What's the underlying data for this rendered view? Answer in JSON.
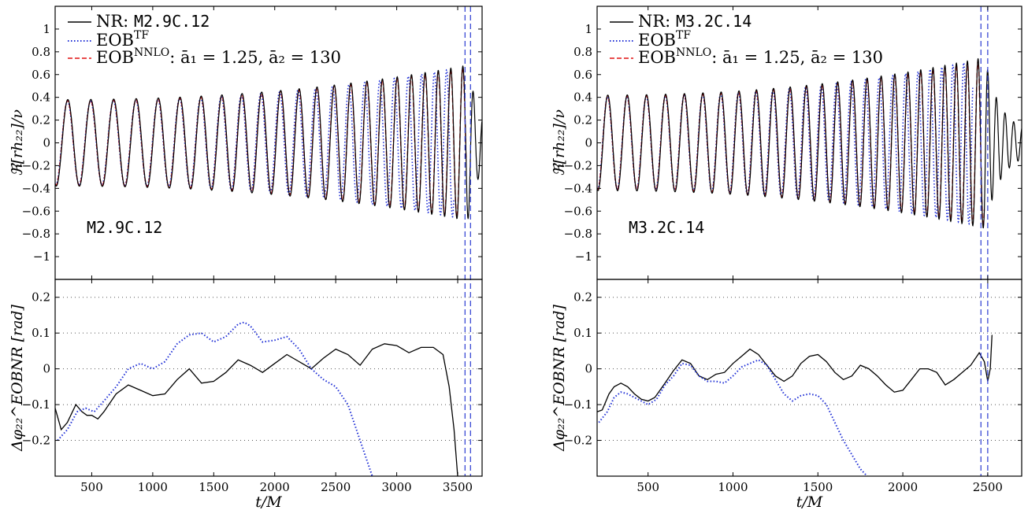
{
  "chart_data": [
    {
      "type": "line",
      "panel": "left",
      "annotation": "M2.9C.12",
      "legend": {
        "nr_prefix": "NR: ",
        "nr_id": "M2.9C.12",
        "eob_tf_base": "EOB",
        "eob_tf_sup": "TF",
        "eob_nnlo_base": "EOB",
        "eob_nnlo_sup": "NNLO",
        "eob_nnlo_rest": ": ā₁ = 1.25, ā₂ = 130",
        "placement": "top-left"
      },
      "xlabel": "t/M",
      "top": {
        "ylabel": "ℜ[rh₂₂]/ν",
        "xlim": [
          200,
          3700
        ],
        "ylim": [
          -1.2,
          1.2
        ],
        "yticks": [
          "1",
          "0.8",
          "0.6",
          "0.4",
          "0.2",
          "0",
          "−0.2",
          "−0.4",
          "−0.6",
          "−0.8",
          "−1"
        ],
        "ytick_values": [
          1,
          0.8,
          0.6,
          0.4,
          0.2,
          0,
          -0.2,
          -0.4,
          -0.6,
          -0.8,
          -1
        ],
        "vlines": [
          3560,
          3605
        ],
        "wave": {
          "t0": 200,
          "t_merger": 3570,
          "period_start": 190,
          "period_end": 95,
          "amp_start": 0.38,
          "amp_end": 0.68,
          "ringdown_end": 3700
        }
      },
      "bottom": {
        "ylabel": "Δφ₂₂^EOBNR [rad]",
        "xlim": [
          200,
          3700
        ],
        "ylim": [
          -0.3,
          0.25
        ],
        "yticks": [
          "0.2",
          "0.1",
          "0",
          "−0.1",
          "−0.2"
        ],
        "ytick_values": [
          0.2,
          0.1,
          0,
          -0.1,
          -0.2
        ],
        "grid": "dotted",
        "vlines": [
          3560,
          3605
        ],
        "series": [
          {
            "name": "NR",
            "style": "solid",
            "x": [
              200,
              250,
              300,
              370,
              420,
              460,
              500,
              550,
              600,
              700,
              800,
              900,
              1000,
              1100,
              1200,
              1300,
              1400,
              1500,
              1600,
              1700,
              1800,
              1900,
              2000,
              2100,
              2200,
              2300,
              2400,
              2500,
              2600,
              2700,
              2800,
              2900,
              3000,
              3100,
              3200,
              3300,
              3380,
              3430,
              3470,
              3500
            ],
            "y": [
              -0.11,
              -0.17,
              -0.15,
              -0.1,
              -0.12,
              -0.13,
              -0.13,
              -0.14,
              -0.12,
              -0.07,
              -0.045,
              -0.06,
              -0.075,
              -0.07,
              -0.03,
              0.0,
              -0.04,
              -0.035,
              -0.01,
              0.025,
              0.01,
              -0.01,
              0.015,
              0.04,
              0.02,
              0.0,
              0.03,
              0.055,
              0.04,
              0.01,
              0.055,
              0.07,
              0.065,
              0.045,
              0.06,
              0.06,
              0.04,
              -0.05,
              -0.17,
              -0.3
            ]
          },
          {
            "name": "EOB^TF",
            "style": "dotted",
            "x": [
              220,
              300,
              380,
              450,
              520,
              600,
              700,
              800,
              900,
              1000,
              1100,
              1200,
              1300,
              1400,
              1500,
              1600,
              1700,
              1750,
              1800,
              1900,
              2000,
              2100,
              2200,
              2300,
              2400,
              2500,
              2600,
              2700,
              2800
            ],
            "y": [
              -0.2,
              -0.17,
              -0.12,
              -0.11,
              -0.12,
              -0.09,
              -0.05,
              0.0,
              0.015,
              0.0,
              0.02,
              0.07,
              0.095,
              0.1,
              0.075,
              0.09,
              0.125,
              0.13,
              0.12,
              0.075,
              0.08,
              0.09,
              0.055,
              0.0,
              -0.03,
              -0.05,
              -0.1,
              -0.2,
              -0.3
            ]
          }
        ]
      }
    },
    {
      "type": "line",
      "panel": "right",
      "annotation": "M3.2C.14",
      "legend": {
        "nr_prefix": "NR: ",
        "nr_id": "M3.2C.14",
        "eob_tf_base": "EOB",
        "eob_tf_sup": "TF",
        "eob_nnlo_base": "EOB",
        "eob_nnlo_sup": "NNLO",
        "eob_nnlo_rest": ": ā₁ = 1.25, ā₂ = 130",
        "placement": "top-left"
      },
      "xlabel": "t/M",
      "top": {
        "ylabel": "ℜ[rh₂₂]/ν",
        "xlim": [
          200,
          2700
        ],
        "ylim": [
          -1.2,
          1.2
        ],
        "yticks": [
          "1",
          "0.8",
          "0.6",
          "0.4",
          "0.2",
          "0",
          "−0.2",
          "−0.4",
          "−0.6",
          "−0.8",
          "−1"
        ],
        "ytick_values": [
          1,
          0.8,
          0.6,
          0.4,
          0.2,
          0,
          -0.2,
          -0.4,
          -0.6,
          -0.8,
          -1
        ],
        "vlines": [
          2460,
          2500
        ],
        "wave": {
          "t0": 200,
          "t_merger": 2480,
          "period_start": 115,
          "period_end": 60,
          "amp_start": 0.42,
          "amp_end": 0.75,
          "ringdown_end": 2700
        }
      },
      "bottom": {
        "ylabel": "Δφ₂₂^EOBNR [rad]",
        "xlim": [
          200,
          2700
        ],
        "ylim": [
          -0.3,
          0.25
        ],
        "yticks": [
          "0.2",
          "0.1",
          "0",
          "−0.1",
          "−0.2"
        ],
        "ytick_values": [
          0.2,
          0.1,
          0,
          -0.1,
          -0.2
        ],
        "grid": "dotted",
        "vlines": [
          2460,
          2500
        ],
        "series": [
          {
            "name": "NR",
            "style": "solid",
            "x": [
              200,
              230,
              270,
              300,
              340,
              380,
              420,
              460,
              500,
              540,
              600,
              650,
              700,
              750,
              800,
              850,
              900,
              950,
              1000,
              1050,
              1100,
              1150,
              1200,
              1250,
              1300,
              1350,
              1400,
              1450,
              1500,
              1550,
              1600,
              1650,
              1700,
              1750,
              1800,
              1850,
              1900,
              1950,
              2000,
              2050,
              2100,
              2150,
              2200,
              2250,
              2300,
              2350,
              2400,
              2450,
              2480,
              2500,
              2515,
              2525
            ],
            "y": [
              -0.12,
              -0.115,
              -0.07,
              -0.05,
              -0.04,
              -0.05,
              -0.07,
              -0.085,
              -0.09,
              -0.08,
              -0.04,
              -0.005,
              0.025,
              0.015,
              -0.02,
              -0.03,
              -0.015,
              -0.01,
              0.015,
              0.035,
              0.055,
              0.04,
              0.01,
              -0.02,
              -0.035,
              -0.02,
              0.015,
              0.035,
              0.04,
              0.02,
              -0.01,
              -0.03,
              -0.02,
              0.01,
              0.0,
              -0.02,
              -0.045,
              -0.065,
              -0.06,
              -0.03,
              0.0,
              0.0,
              -0.01,
              -0.045,
              -0.03,
              -0.01,
              0.01,
              0.045,
              0.02,
              -0.035,
              0.0,
              0.095
            ]
          },
          {
            "name": "EOB^TF",
            "style": "dotted",
            "x": [
              210,
              260,
              300,
              340,
              380,
              420,
              460,
              500,
              550,
              600,
              650,
              700,
              750,
              800,
              850,
              900,
              950,
              1000,
              1050,
              1100,
              1150,
              1200,
              1250,
              1300,
              1350,
              1400,
              1450,
              1500,
              1550,
              1600,
              1650,
              1700,
              1750,
              1790
            ],
            "y": [
              -0.15,
              -0.12,
              -0.08,
              -0.065,
              -0.07,
              -0.08,
              -0.09,
              -0.1,
              -0.085,
              -0.045,
              -0.02,
              0.015,
              0.01,
              -0.02,
              -0.035,
              -0.035,
              -0.04,
              -0.02,
              0.005,
              0.015,
              0.025,
              0.01,
              -0.03,
              -0.07,
              -0.09,
              -0.075,
              -0.07,
              -0.075,
              -0.1,
              -0.15,
              -0.2,
              -0.24,
              -0.28,
              -0.3
            ]
          }
        ]
      }
    }
  ],
  "colors": {
    "nr": "#000000",
    "eob_tf": "#1f2fd6",
    "eob_nnlo": "#e01010",
    "grid": "#555555",
    "vline": "#2a3ad0"
  },
  "xticks": {
    "left": [
      "500",
      "1000",
      "1500",
      "2000",
      "2500",
      "3000",
      "3500"
    ],
    "right": [
      "500",
      "1000",
      "1500",
      "2000",
      "2500"
    ]
  },
  "xtick_values": {
    "left": [
      500,
      1000,
      1500,
      2000,
      2500,
      3000,
      3500
    ],
    "right": [
      500,
      1000,
      1500,
      2000,
      2500
    ]
  }
}
